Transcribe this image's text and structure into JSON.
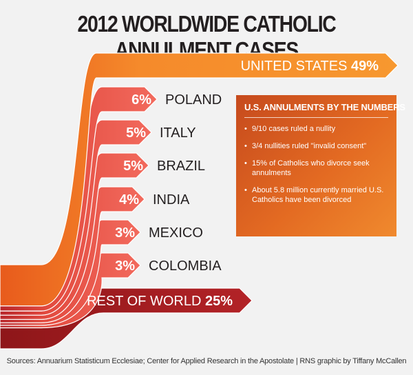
{
  "title": "2012 WORLDWIDE CATHOLIC ANNULMENT CASES",
  "chart_data": {
    "type": "bar",
    "title": "2012 WORLDWIDE CATHOLIC ANNULMENT CASES",
    "unit": "%",
    "categories": [
      "UNITED STATES",
      "POLAND",
      "ITALY",
      "BRAZIL",
      "INDIA",
      "MEXICO",
      "COLOMBIA",
      "REST OF WORLD"
    ],
    "values": [
      49,
      6,
      5,
      5,
      4,
      3,
      3,
      25
    ],
    "labels": [
      "49%",
      "6%",
      "5%",
      "5%",
      "4%",
      "3%",
      "3%",
      "25%"
    ]
  },
  "colors": {
    "orange": "#f07d24",
    "red_dark": "#a71e24",
    "red_light": "#f06458",
    "background": "#f2f2f2"
  },
  "numbers_box": {
    "title": "U.S. ANNULMENTS BY THE NUMBERS",
    "items": [
      "9/10 cases ruled a nullity",
      "3/4 nullities ruled \"invalid consent\"",
      "15% of Catholics who divorce seek annulments",
      "About 5.8 million currently married U.S. Catholics have been divorced"
    ]
  },
  "sources": "Sources: Annuarium Statisticum Ecclesiae; Center for Applied Research in the Apostolate | RNS graphic by Tiffany McCallen"
}
